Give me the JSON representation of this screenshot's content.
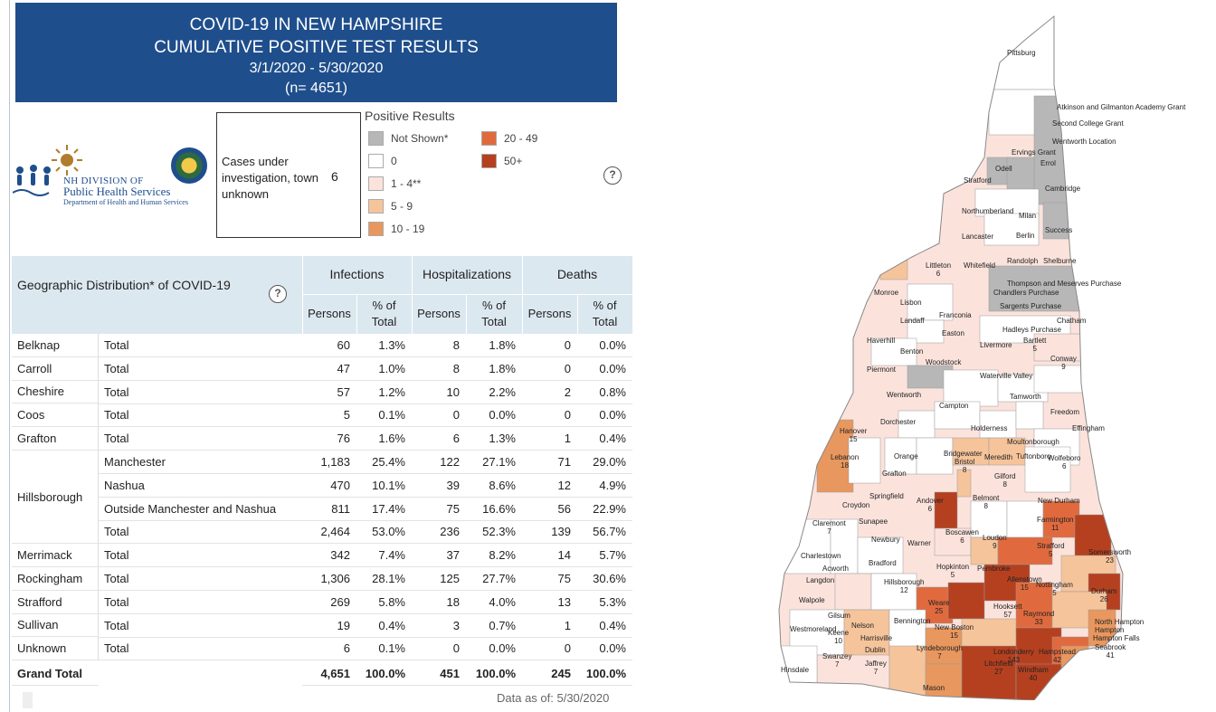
{
  "title": {
    "line1": "COVID-19 IN NEW HAMPSHIRE",
    "line2": "CUMULATIVE POSITIVE TEST RESULTS",
    "line3": "3/1/2020 - 5/30/2020",
    "line4": "(n= 4651)"
  },
  "logo": {
    "line1": "NH DIVISION OF",
    "line2": "Public Health Services",
    "line3": "Department of Health and Human Services"
  },
  "cases_box": {
    "label": "Cases under investigation, town unknown",
    "value": "6"
  },
  "legend": {
    "title": "Positive Results",
    "items": [
      {
        "label": "Not Shown*",
        "color": "#b7b7b7"
      },
      {
        "label": "0",
        "color": "#ffffff"
      },
      {
        "label": "1 - 4**",
        "color": "#fbe3dc"
      },
      {
        "label": "5 - 9",
        "color": "#f6c49b"
      },
      {
        "label": "10 - 19",
        "color": "#e8975e"
      },
      {
        "label": "20 - 49",
        "color": "#e06a3e"
      },
      {
        "label": "50+",
        "color": "#b5401f"
      }
    ],
    "help": "?"
  },
  "table": {
    "geo_title": "Geographic Distribution* of COVID-19",
    "help": "?",
    "groups": [
      "Infections",
      "Hospitalizations",
      "Deaths"
    ],
    "sub_headers": [
      "Persons",
      "% of Total",
      "Persons",
      "% of Total",
      "Persons",
      "% of Total"
    ],
    "rows": [
      {
        "county": "Belknap",
        "sub": "Total",
        "v": [
          "60",
          "1.3%",
          "8",
          "1.8%",
          "0",
          "0.0%"
        ]
      },
      {
        "county": "Carroll",
        "sub": "Total",
        "v": [
          "47",
          "1.0%",
          "8",
          "1.8%",
          "0",
          "0.0%"
        ]
      },
      {
        "county": "Cheshire",
        "sub": "Total",
        "v": [
          "57",
          "1.2%",
          "10",
          "2.2%",
          "2",
          "0.8%"
        ]
      },
      {
        "county": "Coos",
        "sub": "Total",
        "v": [
          "5",
          "0.1%",
          "0",
          "0.0%",
          "0",
          "0.0%"
        ]
      },
      {
        "county": "Grafton",
        "sub": "Total",
        "v": [
          "76",
          "1.6%",
          "6",
          "1.3%",
          "1",
          "0.4%"
        ]
      },
      {
        "county": "",
        "sub": "Manchester",
        "v": [
          "1,183",
          "25.4%",
          "122",
          "27.1%",
          "71",
          "29.0%"
        ]
      },
      {
        "county": "",
        "sub": "Nashua",
        "v": [
          "470",
          "10.1%",
          "39",
          "8.6%",
          "12",
          "4.9%"
        ]
      },
      {
        "county": "",
        "sub": "Outside Manchester and Nashua",
        "v": [
          "811",
          "17.4%",
          "75",
          "16.6%",
          "56",
          "22.9%"
        ]
      },
      {
        "county": "",
        "sub": "Total",
        "v": [
          "2,464",
          "53.0%",
          "236",
          "52.3%",
          "139",
          "56.7%"
        ]
      },
      {
        "county": "Merrimack",
        "sub": "Total",
        "v": [
          "342",
          "7.4%",
          "37",
          "8.2%",
          "14",
          "5.7%"
        ]
      },
      {
        "county": "Rockingham",
        "sub": "Total",
        "v": [
          "1,306",
          "28.1%",
          "125",
          "27.7%",
          "75",
          "30.6%"
        ]
      },
      {
        "county": "Strafford",
        "sub": "Total",
        "v": [
          "269",
          "5.8%",
          "18",
          "4.0%",
          "13",
          "5.3%"
        ]
      },
      {
        "county": "Sullivan",
        "sub": "Total",
        "v": [
          "19",
          "0.4%",
          "3",
          "0.7%",
          "1",
          "0.4%"
        ]
      },
      {
        "county": "Unknown",
        "sub": "Total",
        "v": [
          "6",
          "0.1%",
          "0",
          "0.0%",
          "0",
          "0.0%"
        ]
      }
    ],
    "hillsborough_label": "Hillsborough",
    "grand_total": {
      "label": "Grand Total",
      "v": [
        "4,651",
        "100.0%",
        "451",
        "100.0%",
        "245",
        "100.0%"
      ]
    },
    "data_as_of": "Data as of:  5/30/2020"
  },
  "map": {
    "towns": [
      {
        "name": "Pittsburg"
      },
      {
        "name": "Atkinson and Gilmanton Academy Grant"
      },
      {
        "name": "Second College Grant"
      },
      {
        "name": "Wentworth Location"
      },
      {
        "name": "Errol"
      },
      {
        "name": "Ervings Grant"
      },
      {
        "name": "Odell"
      },
      {
        "name": "Stratford"
      },
      {
        "name": "Cambridge"
      },
      {
        "name": "Northumberland"
      },
      {
        "name": "Milan"
      },
      {
        "name": "Lancaster"
      },
      {
        "name": "Berlin"
      },
      {
        "name": "Success"
      },
      {
        "name": "Randolph"
      },
      {
        "name": "Shelburne"
      },
      {
        "name": "Littleton",
        "value": "6"
      },
      {
        "name": "Whitefield"
      },
      {
        "name": "Thompson and Meserves Purchase"
      },
      {
        "name": "Chandlers Purchase"
      },
      {
        "name": "Monroe"
      },
      {
        "name": "Sargents Purchase"
      },
      {
        "name": "Lisbon"
      },
      {
        "name": "Franconia"
      },
      {
        "name": "Chatham"
      },
      {
        "name": "Landaff"
      },
      {
        "name": "Hadleys Purchase"
      },
      {
        "name": "Bartlett",
        "value": "5"
      },
      {
        "name": "Easton"
      },
      {
        "name": "Haverhill"
      },
      {
        "name": "Livermore"
      },
      {
        "name": "Benton"
      },
      {
        "name": "Conway",
        "value": "9"
      },
      {
        "name": "Woodstock"
      },
      {
        "name": "Piermont"
      },
      {
        "name": "Waterville Valley"
      },
      {
        "name": "Wentworth"
      },
      {
        "name": "Tamworth"
      },
      {
        "name": "Campton"
      },
      {
        "name": "Freedom"
      },
      {
        "name": "Dorchester"
      },
      {
        "name": "Effingham"
      },
      {
        "name": "Hanover",
        "value": "15"
      },
      {
        "name": "Holderness"
      },
      {
        "name": "Moultonborough"
      },
      {
        "name": "Lebanon",
        "value": "18"
      },
      {
        "name": "Orange"
      },
      {
        "name": "Bridgewater"
      },
      {
        "name": "Bristol",
        "value": "8"
      },
      {
        "name": "Meredith"
      },
      {
        "name": "Tuftonboro"
      },
      {
        "name": "Wolfeboro",
        "value": "6"
      },
      {
        "name": "Grafton"
      },
      {
        "name": "Gilford",
        "value": "8"
      },
      {
        "name": "Springfield"
      },
      {
        "name": "Croydon"
      },
      {
        "name": "Andover",
        "value": "6"
      },
      {
        "name": "Belmont",
        "value": "8"
      },
      {
        "name": "New Durham"
      },
      {
        "name": "Claremont",
        "value": "7"
      },
      {
        "name": "Sunapee"
      },
      {
        "name": "Farmington",
        "value": "11"
      },
      {
        "name": "Boscawen",
        "value": "6"
      },
      {
        "name": "Loudon",
        "value": "9"
      },
      {
        "name": "Newbury"
      },
      {
        "name": "Warner"
      },
      {
        "name": "Strafford",
        "value": "5"
      },
      {
        "name": "Somersworth",
        "value": "23"
      },
      {
        "name": "Charlestown"
      },
      {
        "name": "Acworth"
      },
      {
        "name": "Bradford"
      },
      {
        "name": "Hopkinton",
        "value": "5"
      },
      {
        "name": "Pembroke"
      },
      {
        "name": "Allenstown",
        "value": "15"
      },
      {
        "name": "Langdon"
      },
      {
        "name": "Hillsborough",
        "value": "12"
      },
      {
        "name": "Nottingham",
        "value": "5"
      },
      {
        "name": "Durham",
        "value": "26"
      },
      {
        "name": "Walpole"
      },
      {
        "name": "Weare",
        "value": "25"
      },
      {
        "name": "Hooksett",
        "value": "57"
      },
      {
        "name": "Raymond",
        "value": "33"
      },
      {
        "name": "Gilsum"
      },
      {
        "name": "North Hampton"
      },
      {
        "name": "Bennington"
      },
      {
        "name": "New Boston",
        "value": "15"
      },
      {
        "name": "Hampton Falls"
      },
      {
        "name": "Hampton"
      },
      {
        "name": "Nelson"
      },
      {
        "name": "Westmoreland"
      },
      {
        "name": "Keene",
        "value": "10"
      },
      {
        "name": "Harrisville"
      },
      {
        "name": "Seabrook",
        "value": "41"
      },
      {
        "name": "Londonderry",
        "value": "143"
      },
      {
        "name": "Hampstead",
        "value": "42"
      },
      {
        "name": "Dublin"
      },
      {
        "name": "Lyndeborough",
        "value": "7"
      },
      {
        "name": "Swanzey",
        "value": "7"
      },
      {
        "name": "Jaffrey",
        "value": "7"
      },
      {
        "name": "Litchfield",
        "value": "27"
      },
      {
        "name": "Windham",
        "value": "40"
      },
      {
        "name": "Hinsdale"
      },
      {
        "name": "Mason"
      }
    ]
  }
}
